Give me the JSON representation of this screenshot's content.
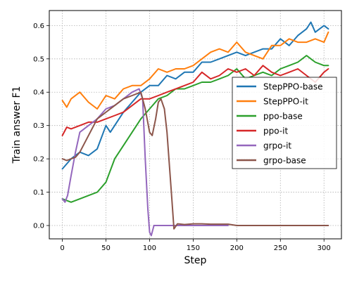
{
  "chart_data": {
    "type": "line",
    "xlabel": "Step",
    "ylabel": "Train answer F1",
    "xlim": [
      -15,
      320
    ],
    "ylim": [
      -0.04,
      0.645
    ],
    "xticks": [
      "0",
      "50",
      "100",
      "150",
      "200",
      "250",
      "300"
    ],
    "yticks": [
      "0.0",
      "0.1",
      "0.2",
      "0.3",
      "0.4",
      "0.5",
      "0.6"
    ],
    "grid": true,
    "legend_position": "center-right",
    "series": [
      {
        "name": "StepPPO-base",
        "color": "#1f77b4",
        "x": [
          0,
          10,
          20,
          30,
          40,
          50,
          55,
          60,
          70,
          80,
          90,
          100,
          110,
          120,
          130,
          140,
          150,
          160,
          170,
          180,
          190,
          200,
          210,
          220,
          230,
          240,
          250,
          260,
          270,
          280,
          285,
          290,
          300,
          305
        ],
        "y": [
          0.17,
          0.2,
          0.22,
          0.21,
          0.23,
          0.3,
          0.28,
          0.3,
          0.34,
          0.37,
          0.4,
          0.42,
          0.42,
          0.45,
          0.44,
          0.46,
          0.46,
          0.49,
          0.49,
          0.5,
          0.51,
          0.52,
          0.51,
          0.52,
          0.53,
          0.53,
          0.56,
          0.54,
          0.57,
          0.59,
          0.61,
          0.58,
          0.6,
          0.59
        ]
      },
      {
        "name": "StepPPO-it",
        "color": "#ff7f0e",
        "x": [
          0,
          5,
          10,
          20,
          30,
          40,
          50,
          60,
          70,
          80,
          90,
          100,
          110,
          120,
          130,
          140,
          150,
          160,
          170,
          180,
          190,
          200,
          210,
          220,
          230,
          240,
          250,
          260,
          270,
          280,
          290,
          300,
          305
        ],
        "y": [
          0.375,
          0.355,
          0.38,
          0.4,
          0.37,
          0.35,
          0.39,
          0.38,
          0.41,
          0.42,
          0.42,
          0.44,
          0.47,
          0.46,
          0.47,
          0.47,
          0.48,
          0.5,
          0.52,
          0.53,
          0.52,
          0.55,
          0.52,
          0.51,
          0.5,
          0.54,
          0.54,
          0.56,
          0.55,
          0.55,
          0.56,
          0.55,
          0.58
        ]
      },
      {
        "name": "ppo-base",
        "color": "#2ca02c",
        "x": [
          0,
          10,
          20,
          30,
          40,
          50,
          60,
          70,
          80,
          90,
          100,
          110,
          120,
          130,
          140,
          150,
          160,
          170,
          180,
          190,
          200,
          210,
          220,
          230,
          240,
          250,
          260,
          270,
          280,
          285,
          290,
          300,
          305
        ],
        "y": [
          0.08,
          0.07,
          0.08,
          0.09,
          0.1,
          0.13,
          0.2,
          0.24,
          0.28,
          0.32,
          0.35,
          0.38,
          0.39,
          0.41,
          0.41,
          0.42,
          0.43,
          0.43,
          0.44,
          0.45,
          0.47,
          0.44,
          0.45,
          0.46,
          0.45,
          0.47,
          0.48,
          0.49,
          0.51,
          0.5,
          0.49,
          0.48,
          0.48
        ]
      },
      {
        "name": "ppo-it",
        "color": "#d62728",
        "x": [
          0,
          5,
          10,
          20,
          30,
          40,
          50,
          60,
          70,
          80,
          90,
          100,
          110,
          120,
          130,
          140,
          150,
          160,
          170,
          180,
          190,
          200,
          210,
          220,
          230,
          240,
          250,
          260,
          270,
          280,
          290,
          300,
          305
        ],
        "y": [
          0.27,
          0.295,
          0.29,
          0.3,
          0.31,
          0.31,
          0.32,
          0.33,
          0.34,
          0.36,
          0.38,
          0.38,
          0.39,
          0.4,
          0.41,
          0.42,
          0.43,
          0.46,
          0.44,
          0.45,
          0.47,
          0.46,
          0.47,
          0.45,
          0.48,
          0.46,
          0.45,
          0.46,
          0.47,
          0.45,
          0.43,
          0.46,
          0.47
        ]
      },
      {
        "name": "grpo-it",
        "color": "#9467bd",
        "x": [
          0,
          3,
          6,
          10,
          15,
          20,
          30,
          40,
          50,
          60,
          70,
          80,
          88,
          92,
          95,
          98,
          100,
          102,
          105,
          110,
          120,
          150,
          180,
          190
        ],
        "y": [
          0.08,
          0.07,
          0.09,
          0.15,
          0.22,
          0.28,
          0.3,
          0.32,
          0.35,
          0.36,
          0.38,
          0.4,
          0.41,
          0.38,
          0.2,
          0.05,
          -0.02,
          -0.03,
          0.0,
          0.0,
          0.0,
          0.0,
          0.0,
          0.0
        ]
      },
      {
        "name": "grpo-base",
        "color": "#8c564b",
        "x": [
          0,
          5,
          10,
          15,
          20,
          30,
          40,
          50,
          60,
          70,
          80,
          90,
          95,
          100,
          103,
          107,
          110,
          113,
          117,
          120,
          125,
          128,
          132,
          140,
          150,
          160,
          170,
          180,
          190,
          200,
          250,
          300,
          305
        ],
        "y": [
          0.2,
          0.195,
          0.2,
          0.205,
          0.22,
          0.27,
          0.32,
          0.34,
          0.36,
          0.38,
          0.39,
          0.4,
          0.35,
          0.28,
          0.27,
          0.32,
          0.37,
          0.38,
          0.35,
          0.28,
          0.1,
          -0.01,
          0.005,
          0.003,
          0.005,
          0.005,
          0.004,
          0.004,
          0.004,
          0.0,
          0.0,
          0.0,
          0.0
        ]
      }
    ]
  }
}
